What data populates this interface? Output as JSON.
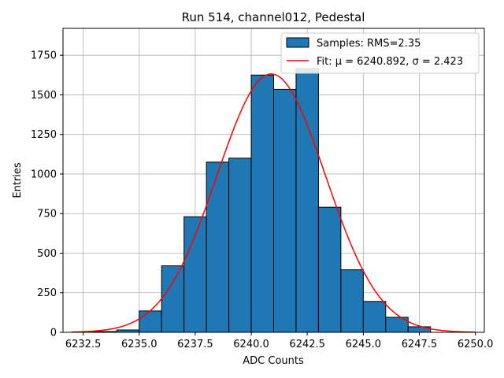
{
  "chart_data": {
    "type": "bar",
    "title": "Run 514, channel012, Pedestal",
    "xlabel": "ADC Counts",
    "ylabel": "Entries",
    "xlim": [
      6231.6,
      6250.4
    ],
    "ylim": [
      0,
      1920
    ],
    "xticks": [
      6232.5,
      6235.0,
      6237.5,
      6240.0,
      6242.5,
      6245.0,
      6247.5,
      6250.0
    ],
    "xtick_labels": [
      "6232.5",
      "6235.0",
      "6237.5",
      "6240.0",
      "6242.5",
      "6245.0",
      "6247.5",
      "6250.0"
    ],
    "yticks": [
      0,
      250,
      500,
      750,
      1000,
      1250,
      1500,
      1750
    ],
    "ytick_labels": [
      "0",
      "250",
      "500",
      "750",
      "1000",
      "1250",
      "1500",
      "1750"
    ],
    "grid": true,
    "legend_position": "top-right",
    "bar_color": "#1f77b4",
    "fit_color": "#ff0000",
    "bins": [
      {
        "left": 6232,
        "right": 6233,
        "count": 2
      },
      {
        "left": 6233,
        "right": 6234,
        "count": 5
      },
      {
        "left": 6234,
        "right": 6235,
        "count": 15
      },
      {
        "left": 6235,
        "right": 6236,
        "count": 135
      },
      {
        "left": 6236,
        "right": 6237,
        "count": 420
      },
      {
        "left": 6237,
        "right": 6238,
        "count": 730
      },
      {
        "left": 6238,
        "right": 6239,
        "count": 1075
      },
      {
        "left": 6239,
        "right": 6240,
        "count": 1100
      },
      {
        "left": 6240,
        "right": 6241,
        "count": 1625
      },
      {
        "left": 6241,
        "right": 6242,
        "count": 1535
      },
      {
        "left": 6242,
        "right": 6243,
        "count": 1665
      },
      {
        "left": 6243,
        "right": 6244,
        "count": 790
      },
      {
        "left": 6244,
        "right": 6245,
        "count": 395
      },
      {
        "left": 6245,
        "right": 6246,
        "count": 195
      },
      {
        "left": 6246,
        "right": 6247,
        "count": 95
      },
      {
        "left": 6247,
        "right": 6248,
        "count": 35
      }
    ],
    "fit": {
      "mu": 6240.892,
      "sigma": 2.423,
      "amplitude": 1632,
      "x_range": [
        6232.0,
        6250.0
      ]
    },
    "legend": {
      "samples_label": "Samples: RMS=2.35",
      "fit_label": "Fit: μ = 6240.892, σ = 2.423"
    }
  }
}
